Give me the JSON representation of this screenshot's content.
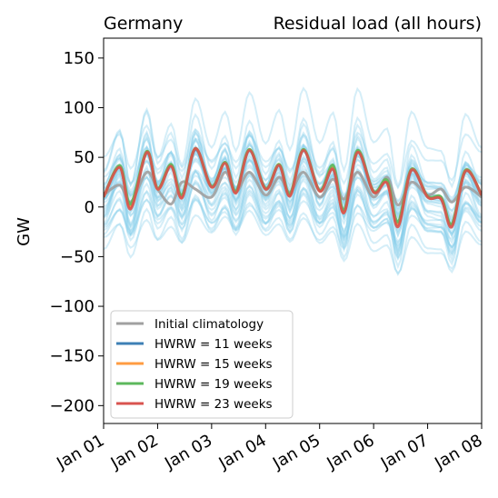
{
  "chart_data": {
    "type": "line",
    "title_left": "Germany",
    "title_right": "Residual load (all hours)",
    "ylabel": "GW",
    "ylim": [
      -218,
      170
    ],
    "xlim": [
      0,
      7
    ],
    "yticks": [
      150,
      100,
      50,
      0,
      -50,
      -100,
      -150,
      -200
    ],
    "ytick_labels": [
      "150",
      "100",
      "50",
      "0",
      "−50",
      "−100",
      "−150",
      "−200"
    ],
    "xticks": [
      0,
      1,
      2,
      3,
      4,
      5,
      6,
      7
    ],
    "xtick_labels": [
      "Jan 01",
      "Jan 02",
      "Jan 03",
      "Jan 04",
      "Jan 05",
      "Jan 06",
      "Jan 07",
      "Jan 08"
    ],
    "grid": false,
    "legend_position": "lower-left",
    "background_ensemble": {
      "color": "#87ceeb",
      "members": 35,
      "spread_gw": 55,
      "note_visible": false
    },
    "series": [
      {
        "name": "Initial climatology",
        "color": "#a0a0a0",
        "x": [
          0,
          0.3,
          0.5,
          0.8,
          1,
          1.25,
          1.45,
          1.7,
          2,
          2.25,
          2.45,
          2.7,
          3,
          3.25,
          3.45,
          3.7,
          4,
          4.25,
          4.45,
          4.7,
          5,
          5.25,
          5.45,
          5.7,
          6,
          6.25,
          6.45,
          6.7,
          7
        ],
        "values": [
          12,
          22,
          5,
          35,
          18,
          3,
          25,
          18,
          10,
          35,
          15,
          35,
          12,
          30,
          15,
          35,
          10,
          28,
          8,
          35,
          10,
          30,
          2,
          25,
          12,
          18,
          5,
          20,
          10
        ]
      },
      {
        "name": "HWRW = 11 weeks",
        "color": "#3e80b5",
        "x": [
          0,
          0.3,
          0.5,
          0.8,
          1,
          1.25,
          1.45,
          1.7,
          2,
          2.25,
          2.45,
          2.7,
          3,
          3.25,
          3.45,
          3.7,
          4,
          4.25,
          4.45,
          4.7,
          5,
          5.25,
          5.45,
          5.7,
          6,
          6.25,
          6.45,
          6.7,
          7
        ],
        "values": [
          10,
          40,
          0,
          55,
          18,
          42,
          10,
          58,
          20,
          45,
          15,
          57,
          18,
          42,
          12,
          57,
          16,
          38,
          -5,
          55,
          15,
          25,
          -18,
          37,
          10,
          8,
          -18,
          36,
          12
        ]
      },
      {
        "name": "HWRW = 15 weeks",
        "color": "#ff9c42",
        "x": [
          0,
          0.3,
          0.5,
          0.8,
          1,
          1.25,
          1.45,
          1.7,
          2,
          2.25,
          2.45,
          2.7,
          3,
          3.25,
          3.45,
          3.7,
          4,
          4.25,
          4.45,
          4.7,
          5,
          5.25,
          5.45,
          5.7,
          6,
          6.25,
          6.45,
          6.7,
          7
        ],
        "values": [
          10,
          40,
          0,
          56,
          18,
          42,
          10,
          59,
          20,
          45,
          15,
          58,
          18,
          43,
          12,
          58,
          16,
          40,
          -5,
          56,
          15,
          26,
          -18,
          38,
          10,
          9,
          -18,
          37,
          12
        ]
      },
      {
        "name": "HWRW = 19 weeks",
        "color": "#5cb85c",
        "x": [
          0,
          0.3,
          0.5,
          0.8,
          1,
          1.25,
          1.45,
          1.7,
          2,
          2.25,
          2.45,
          2.7,
          3,
          3.25,
          3.45,
          3.7,
          4,
          4.25,
          4.45,
          4.7,
          5,
          5.25,
          5.45,
          5.7,
          6,
          6.25,
          6.45,
          6.7,
          7
        ],
        "values": [
          10,
          42,
          3,
          56,
          19,
          43,
          12,
          59,
          21,
          45,
          16,
          58,
          19,
          43,
          13,
          58,
          17,
          42,
          -3,
          57,
          16,
          27,
          -15,
          38,
          11,
          10,
          -17,
          37,
          12
        ]
      },
      {
        "name": "HWRW = 23 weeks",
        "color": "#d9534f",
        "x": [
          0,
          0.3,
          0.5,
          0.8,
          1,
          1.25,
          1.45,
          1.7,
          2,
          2.25,
          2.45,
          2.7,
          3,
          3.25,
          3.45,
          3.7,
          4,
          4.25,
          4.45,
          4.7,
          5,
          5.25,
          5.45,
          5.7,
          6,
          6.25,
          6.45,
          6.7,
          7
        ],
        "values": [
          10,
          40,
          -2,
          55,
          18,
          41,
          9,
          59,
          20,
          44,
          14,
          57,
          18,
          42,
          11,
          57,
          16,
          38,
          -6,
          55,
          15,
          24,
          -20,
          37,
          10,
          8,
          -20,
          36,
          12
        ]
      }
    ]
  }
}
